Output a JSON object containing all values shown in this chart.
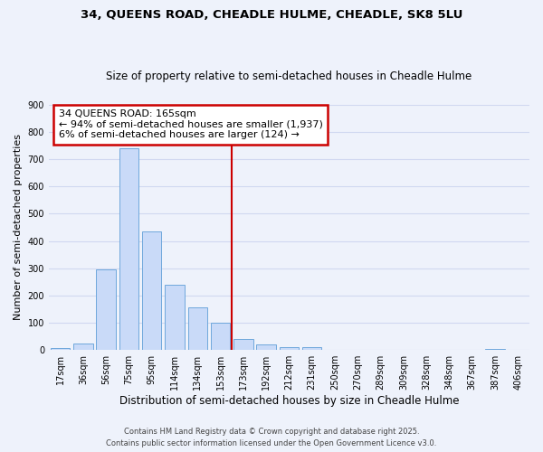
{
  "title": "34, QUEENS ROAD, CHEADLE HULME, CHEADLE, SK8 5LU",
  "subtitle": "Size of property relative to semi-detached houses in Cheadle Hulme",
  "xlabel": "Distribution of semi-detached houses by size in Cheadle Hulme",
  "ylabel": "Number of semi-detached properties",
  "bar_labels": [
    "17sqm",
    "36sqm",
    "56sqm",
    "75sqm",
    "95sqm",
    "114sqm",
    "134sqm",
    "153sqm",
    "173sqm",
    "192sqm",
    "212sqm",
    "231sqm",
    "250sqm",
    "270sqm",
    "289sqm",
    "309sqm",
    "328sqm",
    "348sqm",
    "367sqm",
    "387sqm",
    "406sqm"
  ],
  "bar_values": [
    8,
    25,
    295,
    740,
    435,
    240,
    155,
    100,
    40,
    20,
    12,
    10,
    0,
    0,
    0,
    0,
    0,
    0,
    0,
    5,
    0
  ],
  "bar_color": "#c9daf8",
  "bar_edge_color": "#6fa8dc",
  "vline_x": 7.5,
  "vline_color": "#cc0000",
  "annotation_line1": "34 QUEENS ROAD: 165sqm",
  "annotation_line2": "← 94% of semi-detached houses are smaller (1,937)",
  "annotation_line3": "6% of semi-detached houses are larger (124) →",
  "annotation_box_color": "#ffffff",
  "annotation_box_edge": "#cc0000",
  "ylim": [
    0,
    900
  ],
  "yticks": [
    0,
    100,
    200,
    300,
    400,
    500,
    600,
    700,
    800,
    900
  ],
  "background_color": "#eef2fb",
  "grid_color": "#d0d8f0",
  "footer_line1": "Contains HM Land Registry data © Crown copyright and database right 2025.",
  "footer_line2": "Contains public sector information licensed under the Open Government Licence v3.0.",
  "title_fontsize": 9.5,
  "subtitle_fontsize": 8.5,
  "xlabel_fontsize": 8.5,
  "ylabel_fontsize": 8,
  "tick_fontsize": 7,
  "footer_fontsize": 6,
  "annotation_fontsize": 8
}
